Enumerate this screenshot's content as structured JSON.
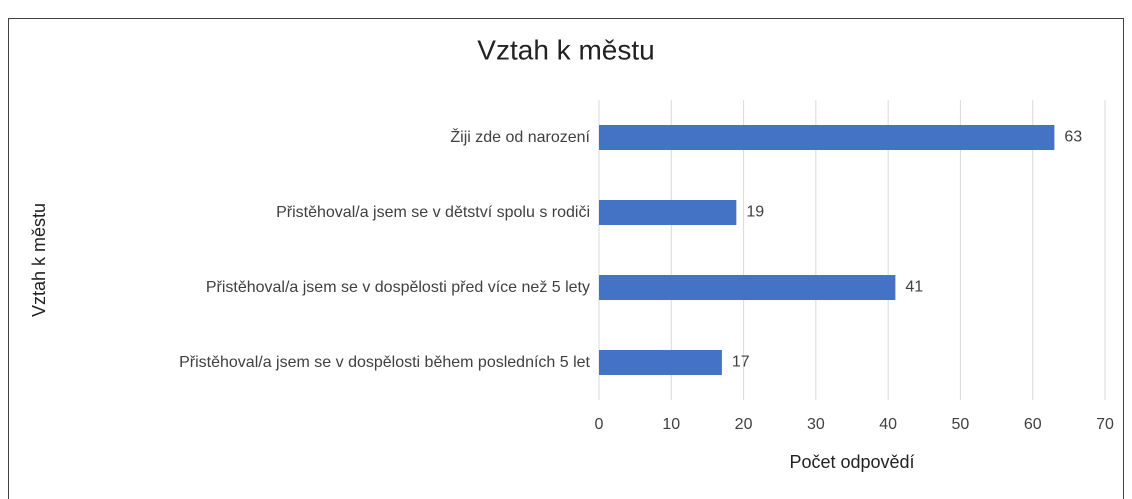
{
  "chart_data": {
    "type": "bar",
    "orientation": "horizontal",
    "title": "Vztah k městu",
    "categories": [
      "Žiji zde od narození",
      "Přistěhoval/a jsem se v dětství spolu s rodiči",
      "Přistěhoval/a jsem se v dospělosti před více než 5 lety",
      "Přistěhoval/a jsem se v dospělosti během posledních 5 let"
    ],
    "values": [
      63,
      19,
      41,
      17
    ],
    "color": "#4472c4",
    "xlim": [
      0,
      70
    ],
    "xticks": [
      0,
      10,
      20,
      30,
      40,
      50,
      60,
      70
    ],
    "grid": true,
    "xlabel": "Počet odpovědí",
    "ylabel": "Vztah k městu"
  }
}
